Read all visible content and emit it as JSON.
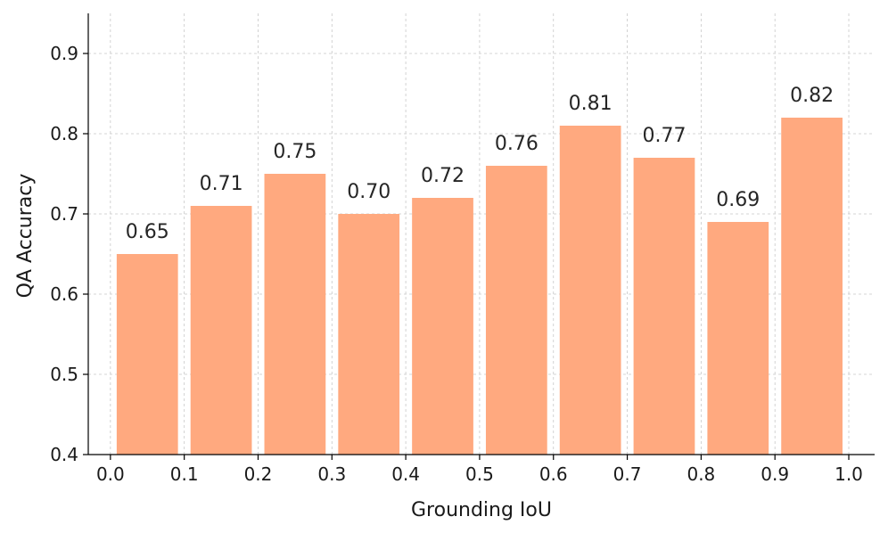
{
  "chart_data": {
    "type": "bar",
    "title": "",
    "xlabel": "Grounding IoU",
    "ylabel": "QA Accuracy",
    "bins": [
      [
        0.0,
        0.1
      ],
      [
        0.1,
        0.2
      ],
      [
        0.2,
        0.3
      ],
      [
        0.3,
        0.4
      ],
      [
        0.4,
        0.5
      ],
      [
        0.5,
        0.6
      ],
      [
        0.6,
        0.7
      ],
      [
        0.7,
        0.8
      ],
      [
        0.8,
        0.9
      ],
      [
        0.9,
        1.0
      ]
    ],
    "values": [
      0.65,
      0.71,
      0.75,
      0.7,
      0.72,
      0.76,
      0.81,
      0.77,
      0.69,
      0.82
    ],
    "data_labels": [
      "0.65",
      "0.71",
      "0.75",
      "0.70",
      "0.72",
      "0.76",
      "0.81",
      "0.77",
      "0.69",
      "0.82"
    ],
    "xlim": [
      -0.03,
      1.035
    ],
    "ylim": [
      0.4,
      0.95
    ],
    "xticks": [
      0.0,
      0.1,
      0.2,
      0.3,
      0.4,
      0.5,
      0.6,
      0.7,
      0.8,
      0.9,
      1.0
    ],
    "xtick_labels": [
      "0.0",
      "0.1",
      "0.2",
      "0.3",
      "0.4",
      "0.5",
      "0.6",
      "0.7",
      "0.8",
      "0.9",
      "1.0"
    ],
    "yticks": [
      0.4,
      0.5,
      0.6,
      0.7,
      0.8,
      0.9
    ],
    "ytick_labels": [
      "0.4",
      "0.5",
      "0.6",
      "0.7",
      "0.8",
      "0.9"
    ],
    "grid": true,
    "bar_color": "#FFA97F",
    "legend": false
  }
}
